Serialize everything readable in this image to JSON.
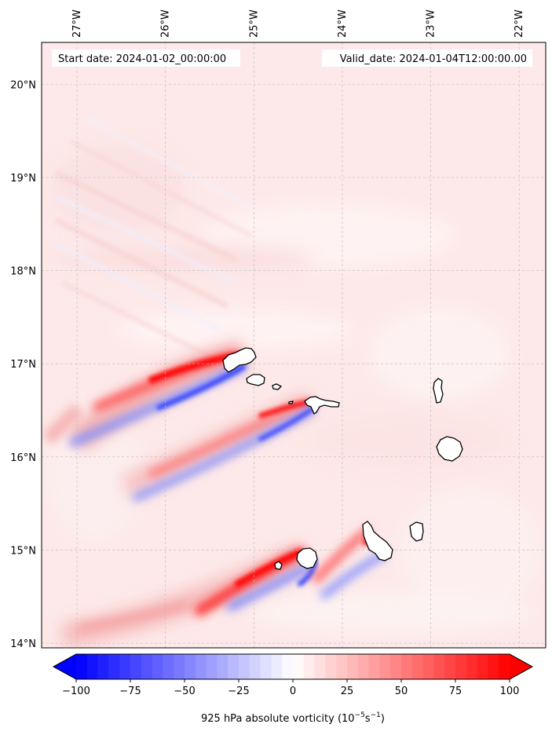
{
  "map": {
    "start_date": "Start date: 2024-01-02_00:00:00",
    "valid_date": "Valid_date: 2024-01-04T12:00:00.00",
    "lon_ticks": [
      "27°W",
      "26°W",
      "25°W",
      "24°W",
      "23°W",
      "22°W"
    ],
    "lat_ticks": [
      "20°N",
      "19°N",
      "18°N",
      "17°N",
      "16°N",
      "15°N",
      "14°N"
    ],
    "lon_values": [
      -27,
      -26,
      -25,
      -24,
      -23,
      -22
    ],
    "lat_values": [
      20,
      19,
      18,
      17,
      16,
      15,
      14
    ],
    "extent": {
      "lon_min": -27.4,
      "lon_max": -21.7,
      "lat_min": 13.95,
      "lat_max": 20.45
    },
    "background_color": "#fde9e9",
    "gridlines": true,
    "features": [
      {
        "name": "Santo Antão",
        "lon": -25.15,
        "lat": 17.05
      },
      {
        "name": "São Vicente",
        "lon": -24.97,
        "lat": 16.84
      },
      {
        "name": "Santa Luzia",
        "lon": -24.75,
        "lat": 16.76
      },
      {
        "name": "São Nicolau",
        "lon": -24.25,
        "lat": 16.6
      },
      {
        "name": "Sal",
        "lon": -22.93,
        "lat": 16.73
      },
      {
        "name": "Boa Vista",
        "lon": -22.82,
        "lat": 16.1
      },
      {
        "name": "Maio",
        "lon": -23.18,
        "lat": 15.2
      },
      {
        "name": "Santiago",
        "lon": -23.6,
        "lat": 15.1
      },
      {
        "name": "Fogo",
        "lon": -24.38,
        "lat": 14.93
      },
      {
        "name": "Brava",
        "lon": -24.7,
        "lat": 14.85
      }
    ]
  },
  "colorbar": {
    "label_html": "925 hPa absolute vorticity (10<tspan dy=\"-6\" font-size=\"9\">−5</tspan><tspan dy=\"6\">s</tspan><tspan dy=\"-6\" font-size=\"9\">−1</tspan><tspan dy=\"6\">)</tspan>",
    "label": "925 hPa absolute vorticity (10−5s−1)",
    "ticks": [
      "−100",
      "−75",
      "−50",
      "−25",
      "0",
      "25",
      "50",
      "75",
      "100"
    ],
    "tick_values": [
      -100,
      -75,
      -50,
      -25,
      0,
      25,
      50,
      75,
      100
    ],
    "vmin": -100,
    "vmax": 100,
    "levels": 40,
    "extend": "both",
    "cmap": "bwr",
    "color_min": "#0000ff",
    "color_mid": "#ffffff",
    "color_max": "#ff0000"
  }
}
